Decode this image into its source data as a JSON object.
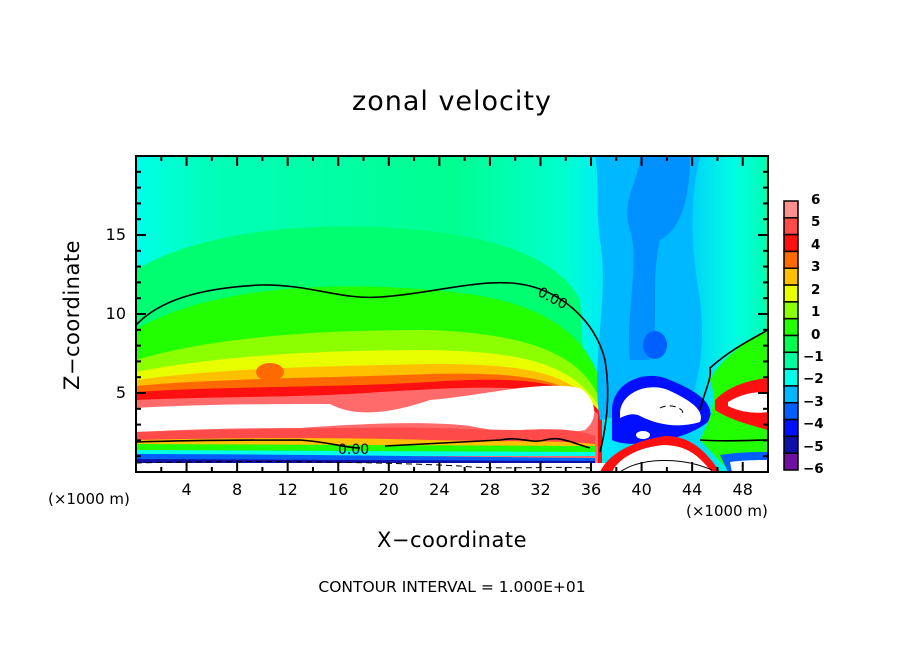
{
  "chart_data": {
    "type": "heatmap",
    "title": "zonal velocity",
    "xlabel": "X−coordinate",
    "ylabel": "Z−coordinate",
    "x_unit": "(×1000 m)",
    "y_unit": "(×1000 m)",
    "xlim": [
      0,
      50
    ],
    "ylim": [
      0,
      20
    ],
    "x_ticks": [
      4,
      8,
      12,
      16,
      20,
      24,
      28,
      32,
      36,
      40,
      44,
      48
    ],
    "x_tick_labels": [
      "4",
      "8",
      "12",
      "16",
      "20",
      "24",
      "28",
      "32",
      "36",
      "40",
      "44",
      "48"
    ],
    "y_ticks": [
      5,
      10,
      15
    ],
    "y_tick_labels": [
      "5",
      "10",
      "15"
    ],
    "contour_labels": [
      "0.00",
      "0.00"
    ],
    "contour_interval_text": "CONTOUR INTERVAL = 1.000E+01",
    "colorbar": {
      "levels": [
        6,
        5,
        4,
        3,
        2,
        1,
        0,
        -1,
        -2,
        -3,
        -4,
        -5,
        -6
      ],
      "level_labels": [
        "6",
        "5",
        "4",
        "3",
        "2",
        "1",
        "0",
        "−1",
        "−2",
        "−3",
        "−4",
        "−5",
        "−6"
      ],
      "bins": [
        {
          "range": [
            5,
            6
          ],
          "color": "#ff8f8f"
        },
        {
          "range": [
            4,
            5
          ],
          "color": "#ff4a4a"
        },
        {
          "range": [
            3,
            4
          ],
          "color": "#ff1010"
        },
        {
          "range": [
            2,
            3
          ],
          "color": "#ff6a00"
        },
        {
          "range": [
            1,
            2
          ],
          "color": "#ffc000"
        },
        {
          "range": [
            0,
            1
          ],
          "color": "#e8ff00"
        },
        {
          "range": [
            -1,
            0
          ],
          "color": "#8cff00"
        },
        {
          "range": [
            -2,
            -1
          ],
          "color": "#22ff00"
        },
        {
          "range": [
            -3,
            -2
          ],
          "color": "#00ff50"
        },
        {
          "range": [
            -4,
            -3
          ],
          "color": "#00ffa0"
        },
        {
          "range": [
            -5,
            -4
          ],
          "color": "#00ffe8"
        },
        {
          "range": [
            -6,
            -5
          ],
          "color": "#00b8ff"
        }
      ],
      "extra_bins": [
        {
          "color": "#0060ff"
        },
        {
          "color": "#0010ff"
        },
        {
          "color": "#1010a8"
        },
        {
          "color": "#7010a0"
        }
      ]
    },
    "saturation_color": "#ffffff",
    "grid": false
  }
}
